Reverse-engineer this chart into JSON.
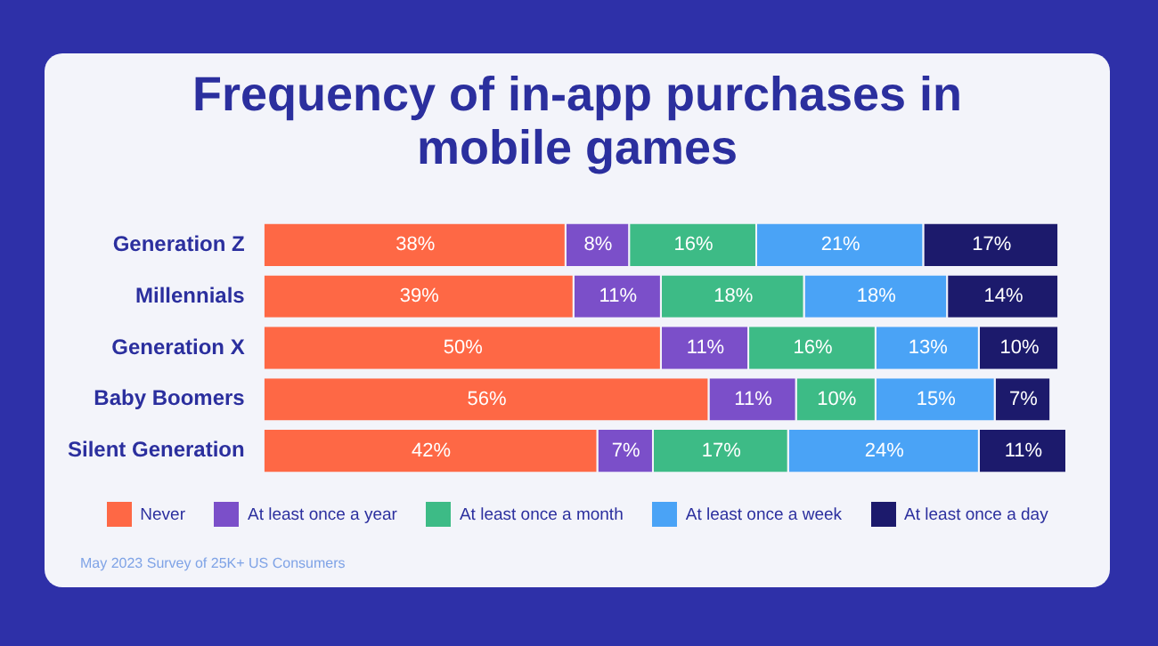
{
  "chart_data": {
    "type": "bar",
    "orientation": "horizontal",
    "stacked": true,
    "title": "Frequency of in-app purchases in mobile games",
    "categories": [
      "Generation Z",
      "Millennials",
      "Generation X",
      "Baby Boomers",
      "Silent Generation"
    ],
    "series": [
      {
        "name": "Never",
        "color": "#fe6845",
        "values": [
          38,
          39,
          50,
          56,
          42
        ],
        "value_labels": [
          "38%",
          "39%",
          "50%",
          "56%",
          "42%"
        ]
      },
      {
        "name": "At least once a year",
        "color": "#7b4fc9",
        "values": [
          8,
          11,
          11,
          11,
          7
        ],
        "value_labels": [
          "8%",
          "11%",
          "11%",
          "11%",
          "7%"
        ]
      },
      {
        "name": "At least once a month",
        "color": "#3dbb86",
        "values": [
          16,
          18,
          16,
          10,
          17
        ],
        "value_labels": [
          "16%",
          "18%",
          "16%",
          "10%",
          "17%"
        ]
      },
      {
        "name": "At least once a week",
        "color": "#4aa3f6",
        "values": [
          21,
          18,
          13,
          15,
          24
        ],
        "value_labels": [
          "21%",
          "18%",
          "13%",
          "15%",
          "24%"
        ]
      },
      {
        "name": "At least once a day",
        "color": "#1c1a6c",
        "values": [
          17,
          14,
          10,
          7,
          11
        ],
        "value_labels": [
          "17%",
          "14%",
          "10%",
          "7%",
          "11%"
        ]
      }
    ],
    "xlim": [
      0,
      101
    ],
    "tick_labels": "y",
    "legend": "bottom",
    "annotations": [
      "May 2023 Survey of 25K+ US Consumers"
    ]
  }
}
